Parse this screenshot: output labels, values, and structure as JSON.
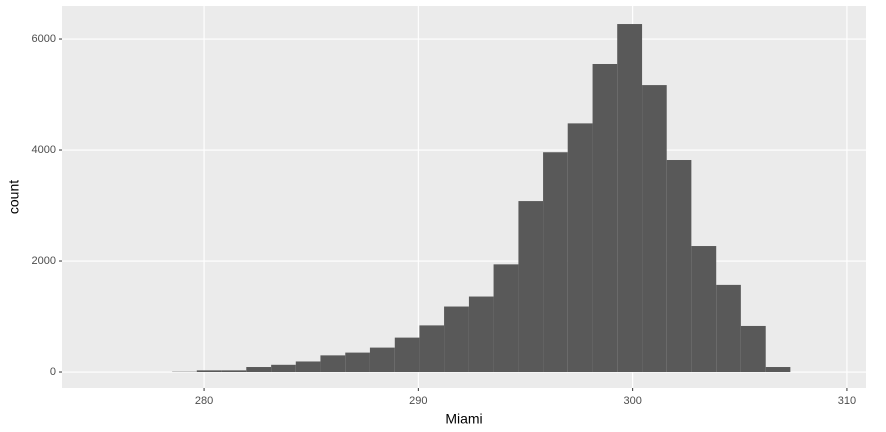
{
  "chart_data": {
    "type": "histogram",
    "x_label": "Miami",
    "y_label": "count",
    "bins": [
      278.51,
      279.66,
      280.82,
      281.97,
      283.13,
      284.28,
      285.43,
      286.59,
      287.74,
      288.9,
      290.05,
      291.2,
      292.36,
      293.51,
      294.67,
      295.82,
      296.97,
      298.13,
      299.28,
      300.44,
      301.59,
      302.74,
      303.9,
      305.05,
      306.21,
      307.36
    ],
    "values": [
      5,
      30,
      30,
      90,
      130,
      190,
      300,
      350,
      440,
      620,
      840,
      1180,
      1360,
      1940,
      3080,
      3960,
      4480,
      5550,
      6270,
      5170,
      3820,
      2270,
      1570,
      830,
      90
    ],
    "color": "#595959",
    "xlim": [
      273.37,
      310.89
    ],
    "xticks": [
      280,
      290,
      300,
      310
    ],
    "ylim": [
      -288,
      6595
    ],
    "yticks": [
      0,
      2000,
      4000,
      6000
    ],
    "grid": true
  }
}
